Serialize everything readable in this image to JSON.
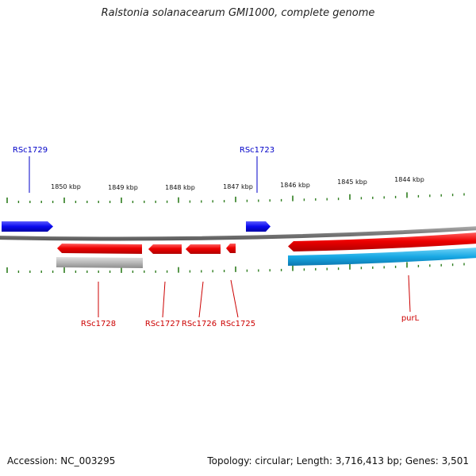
{
  "title": "Ralstonia solanacearum GMI1000, complete genome",
  "footer": {
    "accession": "Accession: NC_003295",
    "topology": "Topology: circular; Length: 3,716,413 bp; Genes: 3,501"
  },
  "colors": {
    "forward_gene": "#1010f0",
    "reverse_gene": "#ee0000",
    "reverse_cds": "#1ab0e8",
    "pseudo": "#b8b8b8",
    "backbone": "#808080",
    "tick": "#2e7d1e",
    "forward_label": "#0000c8",
    "reverse_label": "#cc0000"
  },
  "scale": {
    "tick_labels": [
      "1850 kbp",
      "1849 kbp",
      "1848 kbp",
      "1847 kbp",
      "1846 kbp",
      "1845 kbp",
      "1844 kbp"
    ]
  },
  "genes": {
    "forward": [
      "RSc1729",
      "RSc1723"
    ],
    "reverse": [
      "RSc1728",
      "RSc1727",
      "RSc1726",
      "RSc1725",
      "purL"
    ]
  }
}
